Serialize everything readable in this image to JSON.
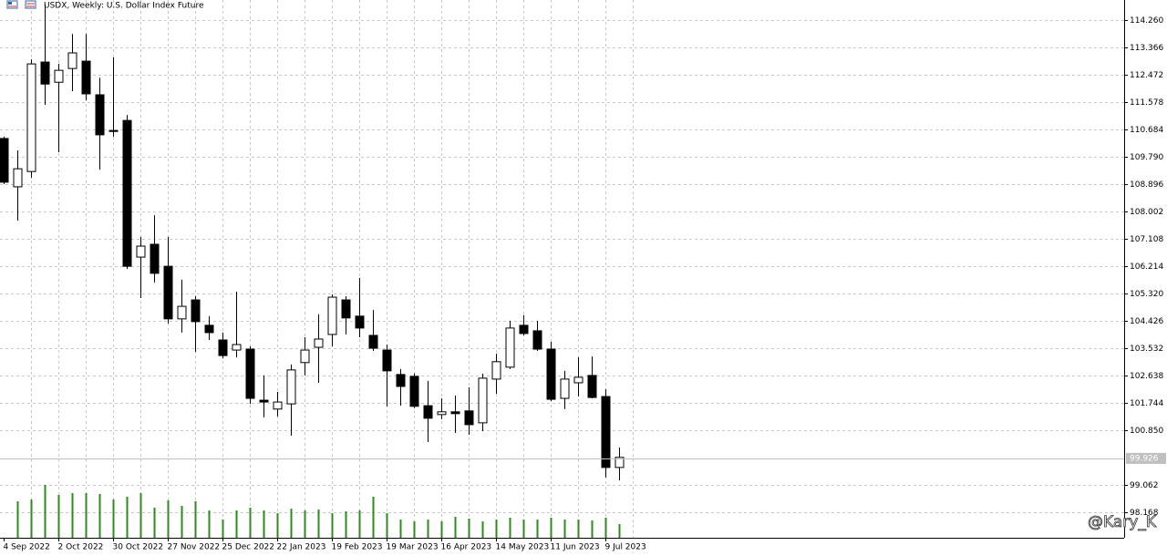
{
  "chart_data": {
    "type": "candlestick",
    "title": "USDX, Weekly:  U.S. Dollar Index Future",
    "watermark": "@Kary_K",
    "categories": [
      "4 Sep 2022",
      null,
      null,
      null,
      "2 Oct 2022",
      null,
      null,
      null,
      "30 Oct 2022",
      null,
      null,
      null,
      "27 Nov 2022",
      null,
      null,
      null,
      "25 Dec 2022",
      null,
      null,
      null,
      "22 Jan 2023",
      null,
      null,
      null,
      "19 Feb 2023",
      null,
      null,
      null,
      "19 Mar 2023",
      null,
      null,
      null,
      "16 Apr 2023",
      null,
      null,
      null,
      "14 May 2023",
      null,
      null,
      null,
      "11 Jun 2023",
      null,
      null,
      null,
      "9 Jul 2023",
      null
    ],
    "open": [
      110.39,
      108.81,
      109.31,
      112.89,
      112.23,
      112.68,
      112.92,
      111.82,
      110.65,
      110.98,
      106.51,
      106.93,
      106.21,
      104.49,
      105.11,
      104.28,
      103.8,
      103.47,
      103.5,
      101.83,
      101.54,
      101.71,
      103.06,
      103.56,
      103.98,
      105.11,
      104.58,
      103.95,
      103.47,
      102.67,
      102.61,
      101.65,
      101.36,
      101.45,
      101.48,
      101.09,
      102.52,
      102.91,
      104.28,
      104.1,
      103.5,
      101.89,
      102.4,
      102.64,
      101.95,
      99.63
    ],
    "high": [
      110.45,
      110.0,
      112.98,
      114.77,
      112.83,
      113.81,
      113.81,
      112.38,
      113.04,
      111.16,
      107.17,
      107.88,
      107.17,
      105.77,
      105.23,
      104.58,
      104.04,
      105.38,
      103.59,
      102.64,
      102.1,
      103.0,
      103.89,
      104.64,
      105.29,
      105.23,
      105.83,
      104.78,
      103.65,
      102.85,
      102.7,
      102.46,
      101.89,
      101.98,
      102.25,
      102.7,
      103.35,
      104.43,
      104.61,
      104.43,
      103.74,
      102.79,
      103.23,
      103.26,
      102.19,
      100.28
    ],
    "low": [
      108.9,
      107.7,
      109.1,
      111.49,
      109.94,
      111.94,
      111.64,
      109.37,
      110.45,
      106.12,
      105.17,
      105.68,
      104.34,
      104.04,
      103.41,
      103.8,
      103.2,
      103.23,
      101.71,
      101.27,
      101.3,
      100.67,
      102.64,
      102.4,
      103.59,
      103.98,
      103.89,
      103.44,
      101.63,
      101.65,
      101.57,
      100.46,
      101.21,
      100.76,
      100.7,
      100.82,
      102.04,
      102.85,
      103.95,
      103.44,
      101.8,
      101.54,
      101.95,
      101.89,
      99.3,
      99.21
    ],
    "close": [
      108.96,
      109.4,
      112.83,
      112.17,
      112.62,
      113.19,
      111.85,
      110.51,
      110.62,
      106.21,
      106.87,
      105.98,
      104.49,
      104.9,
      104.4,
      104.04,
      103.29,
      103.65,
      101.89,
      101.77,
      101.77,
      102.82,
      103.47,
      103.83,
      105.2,
      104.52,
      104.19,
      103.53,
      102.79,
      102.28,
      101.63,
      101.24,
      101.45,
      101.39,
      101.03,
      102.55,
      103.09,
      104.19,
      104.01,
      103.5,
      101.86,
      102.52,
      102.58,
      101.92,
      99.63,
      99.96
    ],
    "up_color": "#ffffff",
    "down_color": "#000000",
    "volume": {
      "color": "#2e8b1e",
      "values": [
        null,
        40,
        42,
        58,
        47,
        49,
        49,
        48,
        42,
        45,
        49,
        33,
        41,
        35,
        40,
        30,
        20,
        30,
        33,
        30,
        27,
        32,
        30,
        31,
        27,
        29,
        30,
        45,
        27,
        20,
        18,
        20,
        18,
        23,
        21,
        18,
        20,
        22,
        20,
        20,
        22,
        20,
        20,
        19,
        22,
        15
      ]
    },
    "current_price": 99.926,
    "ylim": [
      97.33,
      114.92
    ],
    "yticks": [
      {
        "value": 114.26,
        "label": "114.260"
      },
      113.366,
      112.472,
      111.578,
      110.684,
      {
        "value": 109.79,
        "label": "109.790"
      },
      108.896,
      108.002,
      107.108,
      106.214,
      {
        "value": 105.32,
        "label": "105.320"
      },
      104.426,
      103.532,
      102.638,
      101.744,
      {
        "value": 100.85,
        "label": "100.850"
      },
      99.062,
      98.168
    ],
    "grid": true
  }
}
